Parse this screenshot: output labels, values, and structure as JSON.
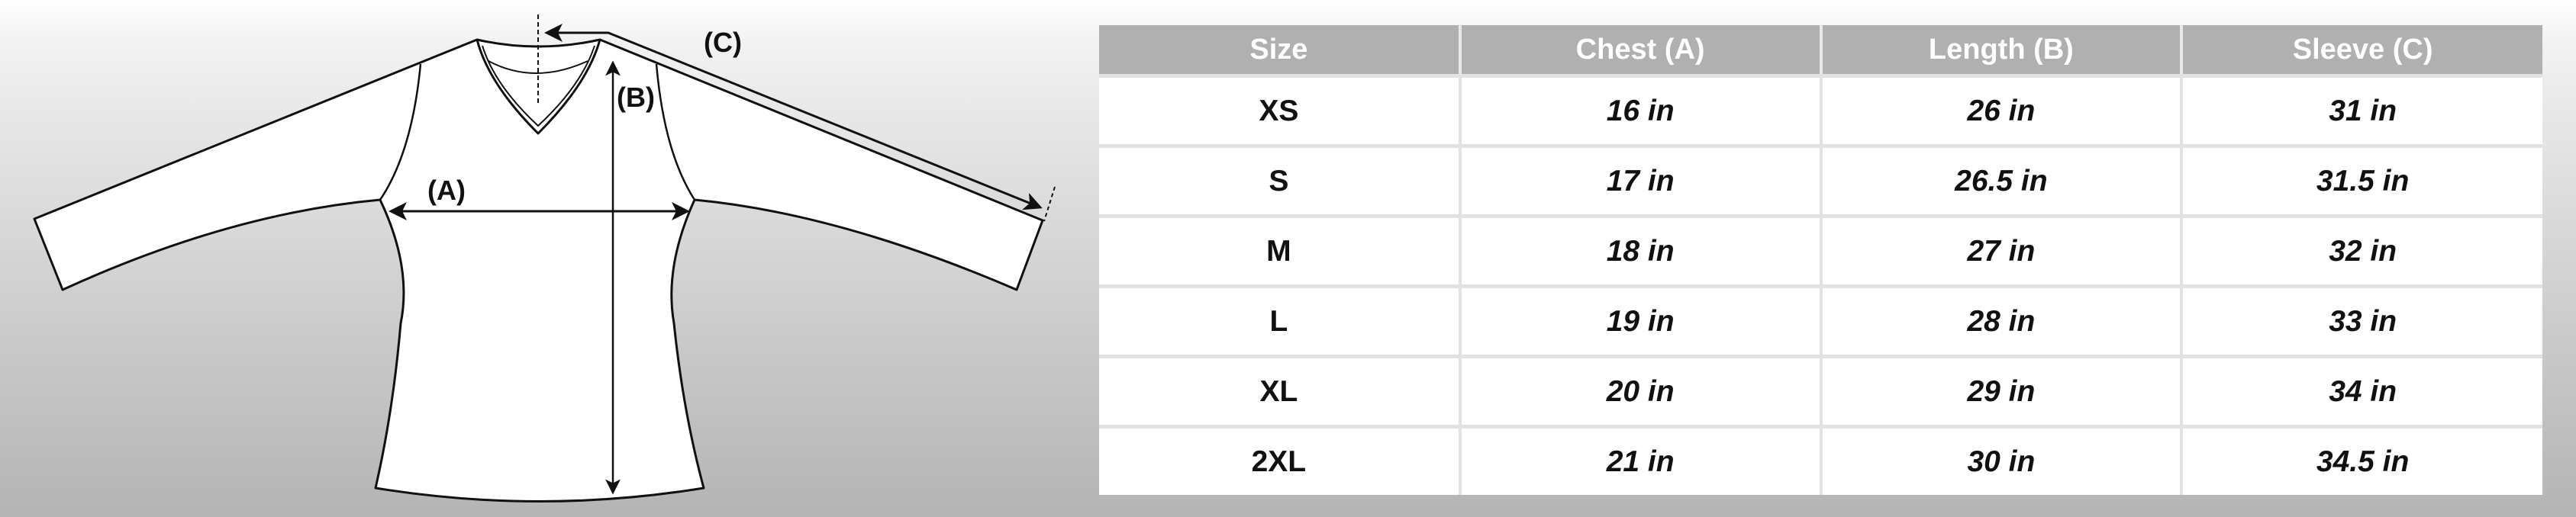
{
  "diagram": {
    "labels": {
      "chest": "(A)",
      "length": "(B)",
      "sleeve": "(C)"
    }
  },
  "table": {
    "headers": [
      "Size",
      "Chest (A)",
      "Length (B)",
      "Sleeve (C)"
    ],
    "rows": [
      [
        "XS",
        "16 in",
        "26 in",
        "31 in"
      ],
      [
        "S",
        "17 in",
        "26.5 in",
        "31.5 in"
      ],
      [
        "M",
        "18 in",
        "27 in",
        "32 in"
      ],
      [
        "L",
        "19 in",
        "28 in",
        "33 in"
      ],
      [
        "XL",
        "20 in",
        "29 in",
        "34 in"
      ],
      [
        "2XL",
        "21 in",
        "30 in",
        "34.5 in"
      ]
    ]
  },
  "colors": {
    "header_bg": "#b0b0b0",
    "header_text": "#ffffff",
    "cell_bg": "#ffffff"
  }
}
